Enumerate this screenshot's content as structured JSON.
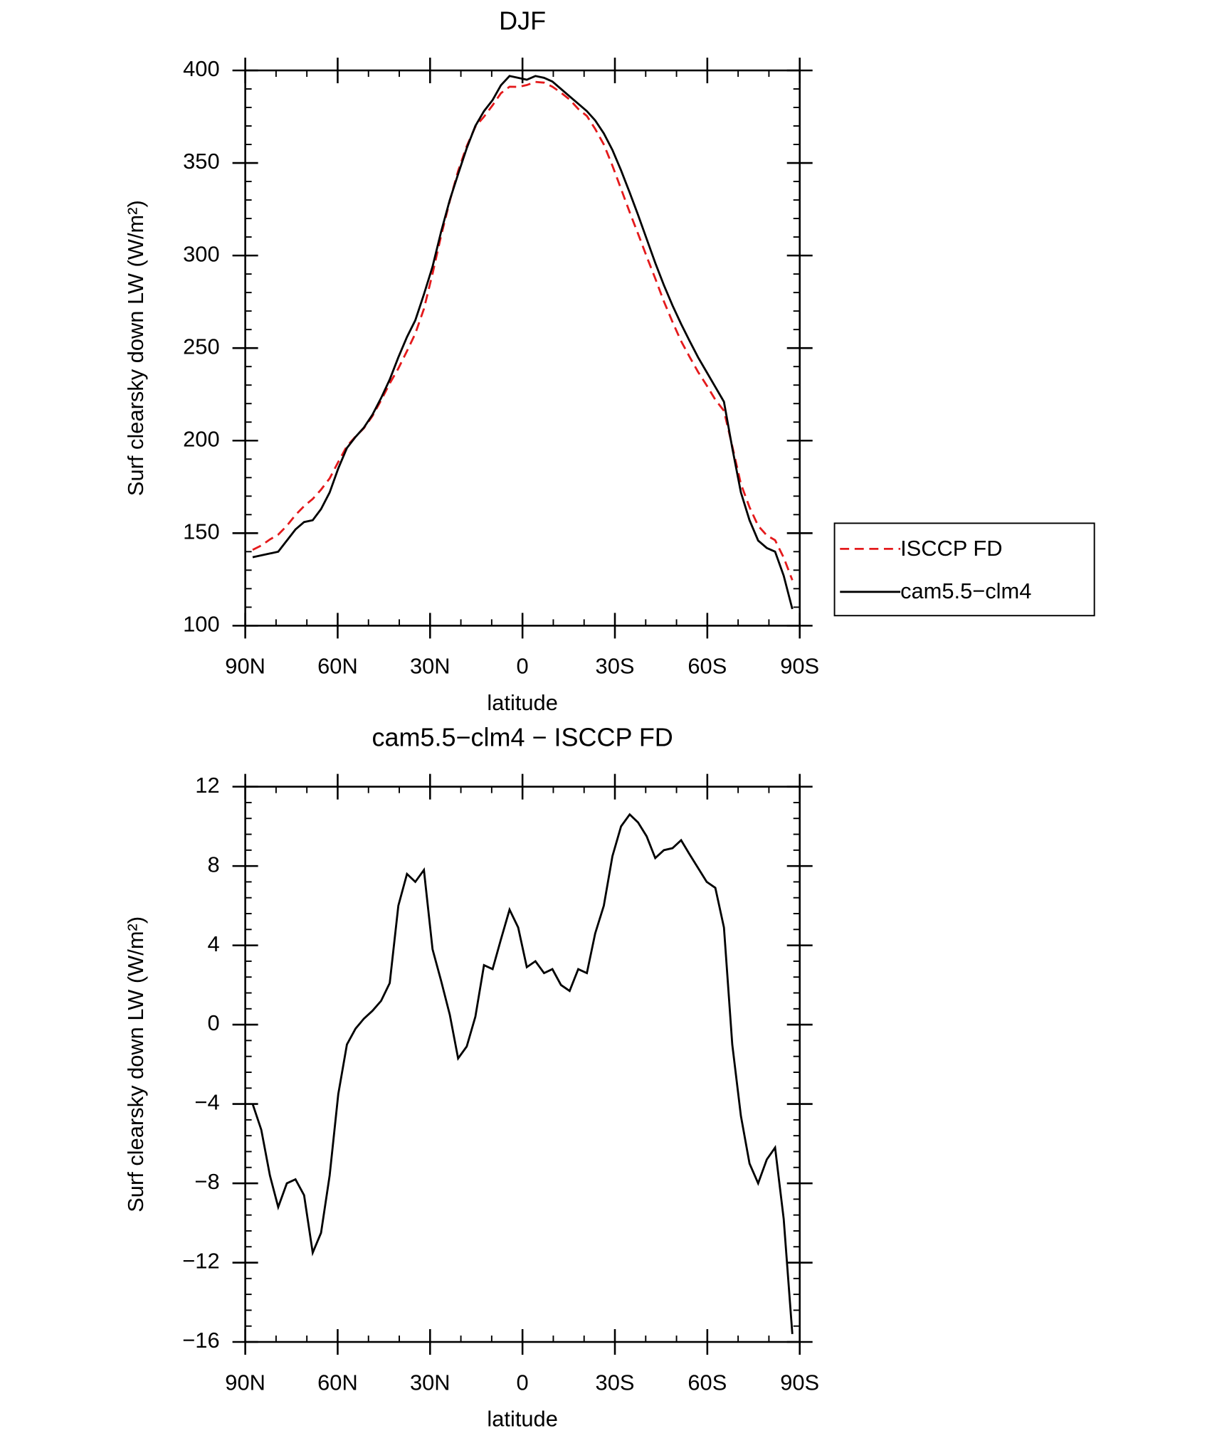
{
  "chart_data": [
    {
      "type": "line",
      "title": "DJF",
      "xlabel": "latitude",
      "ylabel": "Surf clearsky down LW (W/m²)",
      "x": [
        87.6,
        84.8,
        82.0,
        79.3,
        76.5,
        73.7,
        70.9,
        68.1,
        65.4,
        62.6,
        59.8,
        57.0,
        54.2,
        51.5,
        48.7,
        45.9,
        43.1,
        40.3,
        37.5,
        34.8,
        32.0,
        29.2,
        26.4,
        23.6,
        20.9,
        18.1,
        15.3,
        12.5,
        9.7,
        7.0,
        4.2,
        1.4,
        -1.4,
        -4.2,
        -7.0,
        -9.7,
        -12.5,
        -15.3,
        -18.1,
        -20.9,
        -23.6,
        -26.4,
        -29.2,
        -32.0,
        -34.8,
        -37.5,
        -40.3,
        -43.1,
        -45.9,
        -48.7,
        -51.5,
        -54.2,
        -57.0,
        -59.8,
        -62.6,
        -65.4,
        -68.1,
        -70.9,
        -73.7,
        -76.5,
        -79.3,
        -82.0,
        -84.8,
        -87.6
      ],
      "series": [
        {
          "name": "ISCCP FD",
          "color": "#e41a1c",
          "dash": true,
          "values": [
            141,
            143.3,
            146.6,
            149.2,
            154,
            159.8,
            164.6,
            168.5,
            173.5,
            179.6,
            188.5,
            197,
            202.2,
            206.7,
            213.3,
            221.8,
            230.9,
            239,
            248.4,
            257.8,
            271.2,
            290.2,
            310.8,
            329.5,
            345.7,
            359.1,
            369.6,
            375,
            381.2,
            387.7,
            391.2,
            391.1,
            392.1,
            393.8,
            393.4,
            391.2,
            388,
            384.3,
            379.2,
            375.4,
            368.4,
            360,
            348.5,
            336,
            323.4,
            311.8,
            299.5,
            287.6,
            275.2,
            264.1,
            253.7,
            245.4,
            237.1,
            229.8,
            222.1,
            216.1,
            197,
            176.6,
            164,
            154,
            148.8,
            146.2,
            136.8,
            124.6
          ]
        },
        {
          "name": "cam5.5−clm4",
          "color": "#000000",
          "dash": false,
          "values": [
            137,
            138,
            139,
            140,
            146,
            152,
            156,
            157,
            163,
            172,
            185,
            196,
            202,
            207,
            214,
            223,
            233,
            245,
            256,
            265,
            279,
            294,
            313,
            330,
            344,
            358,
            370,
            378,
            384,
            392,
            397,
            396,
            395,
            397,
            396,
            394,
            390,
            386,
            382,
            378,
            373,
            366,
            357,
            346,
            334,
            322,
            309,
            296,
            284,
            273,
            263,
            254,
            245,
            237,
            229,
            221,
            196,
            172,
            157,
            146,
            142,
            140,
            127,
            109
          ]
        }
      ],
      "xlim": [
        90,
        -90
      ],
      "xticks": [
        {
          "value": 90,
          "label": "90N"
        },
        {
          "value": 60,
          "label": "60N"
        },
        {
          "value": 30,
          "label": "30N"
        },
        0,
        {
          "value": -30,
          "label": "30S"
        },
        {
          "value": -60,
          "label": "60S"
        },
        {
          "value": -90,
          "label": "90S"
        }
      ],
      "ylim": [
        100,
        400
      ],
      "yticks": [
        100,
        150,
        200,
        250,
        300,
        350,
        400
      ],
      "legend": "right"
    },
    {
      "type": "line",
      "title": "cam5.5−clm4 − ISCCP FD",
      "xlabel": "latitude",
      "ylabel": "Surf clearsky down LW (W/m²)",
      "x": [
        87.6,
        84.8,
        82.0,
        79.3,
        76.5,
        73.7,
        70.9,
        68.1,
        65.4,
        62.6,
        59.8,
        57.0,
        54.2,
        51.5,
        48.7,
        45.9,
        43.1,
        40.3,
        37.5,
        34.8,
        32.0,
        29.2,
        26.4,
        23.6,
        20.9,
        18.1,
        15.3,
        12.5,
        9.7,
        7.0,
        4.2,
        1.4,
        -1.4,
        -4.2,
        -7.0,
        -9.7,
        -12.5,
        -15.3,
        -18.1,
        -20.9,
        -23.6,
        -26.4,
        -29.2,
        -32.0,
        -34.8,
        -37.5,
        -40.3,
        -43.1,
        -45.9,
        -48.7,
        -51.5,
        -54.2,
        -57.0,
        -59.8,
        -62.6,
        -65.4,
        -68.1,
        -70.9,
        -73.7,
        -76.5,
        -79.3,
        -82.0,
        -84.8,
        -87.6
      ],
      "series": [
        {
          "color": "#000000",
          "dash": false,
          "values": [
            -4.0,
            -5.3,
            -7.6,
            -9.2,
            -8.0,
            -7.8,
            -8.6,
            -11.5,
            -10.5,
            -7.6,
            -3.5,
            -1.0,
            -0.2,
            0.3,
            0.7,
            1.2,
            2.1,
            6.0,
            7.6,
            7.2,
            7.8,
            3.8,
            2.2,
            0.5,
            -1.7,
            -1.1,
            0.4,
            3.0,
            2.8,
            4.3,
            5.8,
            4.9,
            2.9,
            3.2,
            2.6,
            2.8,
            2.0,
            1.7,
            2.8,
            2.6,
            4.6,
            6.0,
            8.5,
            10.0,
            10.6,
            10.2,
            9.5,
            8.4,
            8.8,
            8.9,
            9.3,
            8.6,
            7.9,
            7.2,
            6.9,
            4.9,
            -1.0,
            -4.6,
            -7.0,
            -8.0,
            -6.8,
            -6.2,
            -9.8,
            -15.6
          ]
        }
      ],
      "xlim": [
        90,
        -90
      ],
      "xticks": [
        {
          "value": 90,
          "label": "90N"
        },
        {
          "value": 60,
          "label": "60N"
        },
        {
          "value": 30,
          "label": "30N"
        },
        0,
        {
          "value": -30,
          "label": "30S"
        },
        {
          "value": -60,
          "label": "60S"
        },
        {
          "value": -90,
          "label": "90S"
        }
      ],
      "ylim": [
        -16,
        12
      ],
      "yticks": [
        {
          "value": -16,
          "label": "−16"
        },
        {
          "value": -12,
          "label": "−12"
        },
        {
          "value": -8,
          "label": "−8"
        },
        {
          "value": -4,
          "label": "−4"
        },
        0,
        4,
        8,
        12
      ]
    }
  ]
}
